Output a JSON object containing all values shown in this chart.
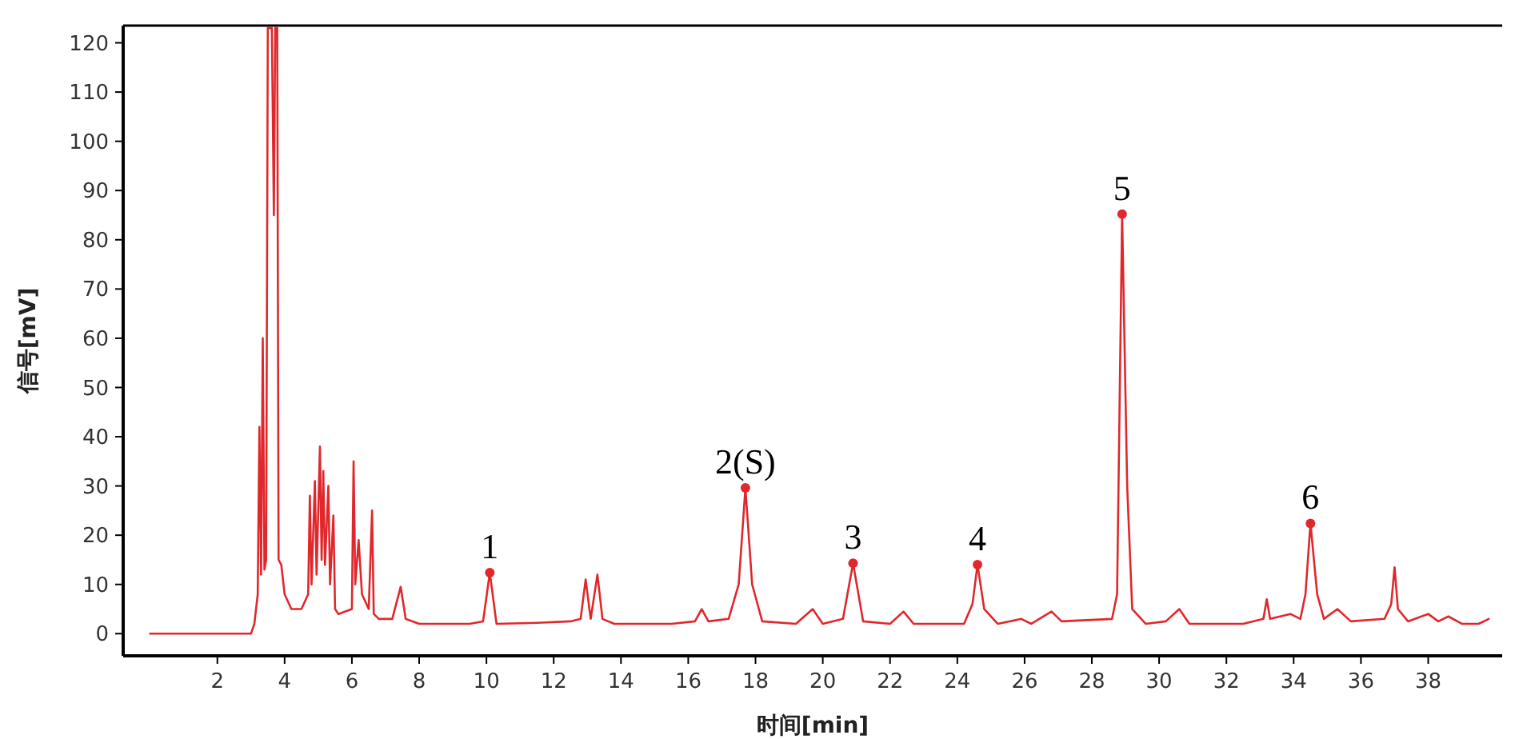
{
  "chart_data": {
    "type": "line",
    "xlabel": "时间[min]",
    "ylabel": "信号[mV]",
    "xlim": [
      -0.8,
      40.2
    ],
    "ylim": [
      -4.5,
      123.5
    ],
    "xticks": [
      2,
      4,
      6,
      8,
      10,
      12,
      14,
      16,
      18,
      20,
      22,
      24,
      26,
      28,
      30,
      32,
      34,
      36,
      38
    ],
    "yticks": [
      0,
      10,
      20,
      30,
      40,
      50,
      60,
      70,
      80,
      90,
      100,
      110,
      120
    ],
    "series": [
      {
        "color": "#e0282c",
        "x": [
          0,
          3.0,
          3.1,
          3.2,
          3.25,
          3.3,
          3.35,
          3.4,
          3.45,
          3.5,
          3.62,
          3.68,
          3.72,
          3.78,
          3.82,
          3.9,
          4.0,
          4.2,
          4.5,
          4.7,
          4.75,
          4.8,
          4.9,
          4.95,
          5.05,
          5.1,
          5.15,
          5.2,
          5.3,
          5.35,
          5.45,
          5.5,
          5.6,
          6.0,
          6.05,
          6.1,
          6.2,
          6.3,
          6.5,
          6.6,
          6.65,
          6.8,
          7.2,
          7.45,
          7.6,
          8.0,
          9.5,
          9.9,
          10.1,
          10.3,
          11.5,
          12.5,
          12.8,
          12.95,
          13.1,
          13.3,
          13.45,
          13.8,
          15.5,
          16.2,
          16.4,
          16.6,
          17.2,
          17.5,
          17.7,
          17.9,
          18.2,
          19.2,
          19.7,
          20.0,
          20.6,
          20.9,
          21.2,
          22.0,
          22.4,
          22.7,
          24.2,
          24.45,
          24.6,
          24.8,
          25.2,
          25.9,
          26.2,
          26.8,
          27.1,
          28.6,
          28.75,
          28.9,
          29.05,
          29.2,
          29.6,
          30.2,
          30.6,
          30.9,
          32.5,
          33.1,
          33.2,
          33.3,
          33.9,
          34.2,
          34.35,
          34.5,
          34.7,
          34.9,
          35.3,
          35.7,
          36.7,
          36.9,
          37.0,
          37.1,
          37.4,
          38.0,
          38.3,
          38.6,
          39.0,
          39.5,
          39.8
        ],
        "values": [
          0,
          0,
          2,
          8,
          42,
          12,
          60,
          13,
          15,
          123,
          123,
          85,
          123,
          123,
          15,
          14,
          8,
          5,
          5,
          8,
          28,
          10,
          31,
          12,
          38,
          15,
          33,
          14,
          30,
          10,
          24,
          5,
          4,
          5,
          35,
          10,
          19,
          8,
          5,
          25,
          4,
          3,
          3,
          9.5,
          3,
          2,
          2,
          2.5,
          12.4,
          2,
          2.2,
          2.5,
          3,
          11,
          3,
          12,
          3,
          2,
          2,
          2.5,
          5,
          2.5,
          3,
          10,
          29.6,
          10,
          2.5,
          2,
          5,
          2,
          3,
          14.3,
          2.5,
          2,
          4.5,
          2,
          2,
          6,
          14,
          5,
          2,
          3,
          2,
          4.5,
          2.5,
          3,
          8,
          85.2,
          30,
          5,
          2,
          2.5,
          5,
          2,
          2,
          3,
          7,
          3,
          4,
          3,
          8,
          22.4,
          8,
          3,
          5,
          2.5,
          3,
          6,
          13.5,
          5,
          2.5,
          4,
          2.5,
          3.5,
          2,
          2,
          3
        ]
      },
      {
        "type": "scatter",
        "color": "#e0282c",
        "marker": "circle",
        "x": [
          10.1,
          17.7,
          20.9,
          24.6,
          28.9,
          34.5
        ],
        "values": [
          12.4,
          29.6,
          14.3,
          14,
          85.2,
          22.4
        ]
      }
    ],
    "annotations": [
      {
        "text": "1",
        "x": 10.1,
        "y": 12.4
      },
      {
        "text": "2(S)",
        "x": 17.7,
        "y": 29.6
      },
      {
        "text": "3",
        "x": 20.9,
        "y": 14.3
      },
      {
        "text": "4",
        "x": 24.6,
        "y": 14
      },
      {
        "text": "5",
        "x": 28.9,
        "y": 85.2
      },
      {
        "text": "6",
        "x": 34.5,
        "y": 22.4
      }
    ]
  }
}
